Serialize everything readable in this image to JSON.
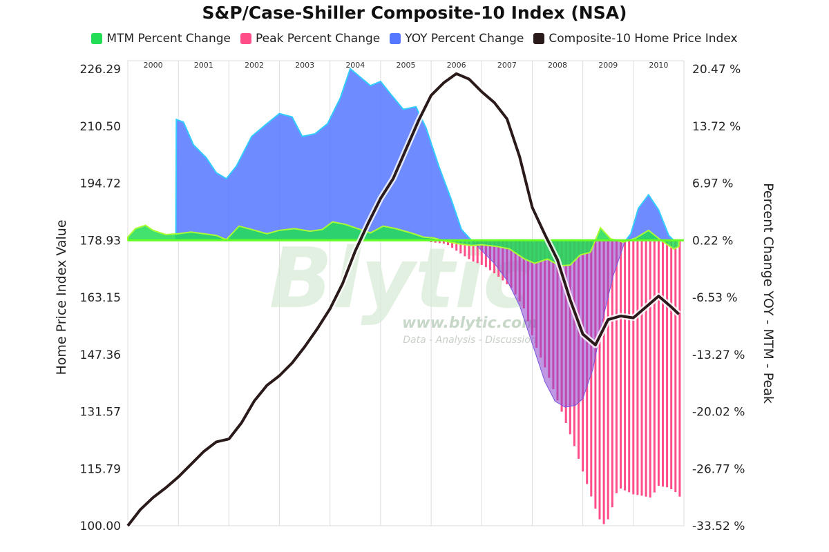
{
  "chart_data": {
    "type": "area",
    "title": "S&P/Case-Shiller Composite-10 Index (NSA)",
    "ylabel_left": "Home Price Index Value",
    "ylabel_right": "Percent Change YOY - MTM - Peak",
    "left_axis": {
      "min": 100.0,
      "max": 226.29,
      "ticks": [
        "100.00",
        "115.79",
        "131.57",
        "147.36",
        "163.15",
        "178.93",
        "194.72",
        "210.50",
        "226.29"
      ]
    },
    "right_axis": {
      "min": -33.52,
      "max": 20.47,
      "ticks": [
        "-33.52 %",
        "-26.77 %",
        "-20.02 %",
        "-13.27 %",
        "-6.53 %",
        "0.22 %",
        "6.97 %",
        "13.72 %",
        "20.47 %"
      ]
    },
    "x_domain": [
      2000.0,
      2011.0
    ],
    "years": [
      "2000",
      "2001",
      "2002",
      "2003",
      "2004",
      "2005",
      "2006",
      "2007",
      "2008",
      "2009",
      "2010"
    ],
    "grid": true,
    "legend_position": "top",
    "watermark": {
      "name": "Blytic",
      "url": "www.blytic.com",
      "tagline": "Data - Analysis - Discussion"
    },
    "series": [
      {
        "name": "MTM Percent Change",
        "axis": "right",
        "type": "area",
        "color": "#22dd55",
        "points": [
          [
            2000.0,
            0.6
          ],
          [
            2000.15,
            1.6
          ],
          [
            2000.35,
            2.0
          ],
          [
            2000.5,
            1.4
          ],
          [
            2000.75,
            0.9
          ],
          [
            2001.0,
            1.0
          ],
          [
            2001.25,
            1.2
          ],
          [
            2001.5,
            1.0
          ],
          [
            2001.75,
            0.8
          ],
          [
            2001.95,
            0.3
          ],
          [
            2002.2,
            1.9
          ],
          [
            2002.45,
            1.5
          ],
          [
            2002.75,
            1.0
          ],
          [
            2003.0,
            1.4
          ],
          [
            2003.3,
            1.6
          ],
          [
            2003.6,
            1.3
          ],
          [
            2003.85,
            1.5
          ],
          [
            2004.05,
            2.4
          ],
          [
            2004.3,
            2.1
          ],
          [
            2004.55,
            1.6
          ],
          [
            2004.8,
            1.1
          ],
          [
            2005.05,
            1.9
          ],
          [
            2005.3,
            1.6
          ],
          [
            2005.6,
            1.1
          ],
          [
            2005.85,
            0.6
          ],
          [
            2006.05,
            0.5
          ],
          [
            2006.3,
            0.1
          ],
          [
            2006.55,
            -0.2
          ],
          [
            2006.8,
            -0.4
          ],
          [
            2007.0,
            -0.3
          ],
          [
            2007.3,
            -0.5
          ],
          [
            2007.55,
            -0.8
          ],
          [
            2007.85,
            -2.0
          ],
          [
            2008.05,
            -2.5
          ],
          [
            2008.3,
            -2.0
          ],
          [
            2008.55,
            -2.8
          ],
          [
            2008.75,
            -2.7
          ],
          [
            2008.95,
            -1.5
          ],
          [
            2009.15,
            -1.2
          ],
          [
            2009.35,
            1.7
          ],
          [
            2009.55,
            0.4
          ],
          [
            2009.8,
            0.0
          ],
          [
            2010.05,
            0.5
          ],
          [
            2010.3,
            1.4
          ],
          [
            2010.55,
            0.2
          ],
          [
            2010.8,
            -0.8
          ],
          [
            2010.9,
            -0.5
          ]
        ]
      },
      {
        "name": "Peak Percent Change",
        "axis": "right",
        "type": "bar",
        "color": "#ff4d88",
        "points": [
          [
            2006.0,
            0.0
          ],
          [
            2006.3,
            -0.2
          ],
          [
            2006.55,
            -1.2
          ],
          [
            2006.8,
            -2.2
          ],
          [
            2007.05,
            -2.8
          ],
          [
            2007.3,
            -3.9
          ],
          [
            2007.6,
            -5.5
          ],
          [
            2007.85,
            -8.0
          ],
          [
            2008.05,
            -12.0
          ],
          [
            2008.3,
            -15.5
          ],
          [
            2008.55,
            -19.5
          ],
          [
            2008.8,
            -23.5
          ],
          [
            2009.05,
            -28.0
          ],
          [
            2009.25,
            -31.5
          ],
          [
            2009.35,
            -33.0
          ],
          [
            2009.45,
            -33.5
          ],
          [
            2009.55,
            -32.0
          ],
          [
            2009.7,
            -29.0
          ],
          [
            2009.9,
            -29.5
          ],
          [
            2010.0,
            -29.8
          ],
          [
            2010.2,
            -30.0
          ],
          [
            2010.35,
            -30.2
          ],
          [
            2010.5,
            -28.8
          ],
          [
            2010.7,
            -29.0
          ],
          [
            2010.85,
            -29.6
          ],
          [
            2010.95,
            -30.3
          ]
        ]
      },
      {
        "name": "YOY Percent Change",
        "axis": "right",
        "type": "area",
        "color": "#5577ff",
        "points": [
          [
            2000.95,
            0.2
          ],
          [
            2000.96,
            14.5
          ],
          [
            2001.1,
            14.2
          ],
          [
            2001.3,
            11.5
          ],
          [
            2001.55,
            10.0
          ],
          [
            2001.75,
            8.2
          ],
          [
            2001.95,
            7.5
          ],
          [
            2002.15,
            9.0
          ],
          [
            2002.45,
            12.5
          ],
          [
            2002.75,
            14.0
          ],
          [
            2003.0,
            15.2
          ],
          [
            2003.25,
            14.8
          ],
          [
            2003.45,
            12.5
          ],
          [
            2003.7,
            12.8
          ],
          [
            2003.95,
            14.0
          ],
          [
            2004.2,
            17.0
          ],
          [
            2004.4,
            20.5
          ],
          [
            2004.6,
            19.5
          ],
          [
            2004.8,
            18.5
          ],
          [
            2005.0,
            19.0
          ],
          [
            2005.2,
            17.5
          ],
          [
            2005.45,
            15.7
          ],
          [
            2005.7,
            16.0
          ],
          [
            2005.9,
            13.5
          ],
          [
            2006.15,
            9.0
          ],
          [
            2006.4,
            5.0
          ],
          [
            2006.6,
            1.5
          ],
          [
            2006.8,
            0.2
          ],
          [
            2009.85,
            0.2
          ],
          [
            2009.95,
            1.0
          ],
          [
            2010.1,
            4.0
          ],
          [
            2010.3,
            5.6
          ],
          [
            2010.5,
            3.8
          ],
          [
            2010.7,
            0.8
          ],
          [
            2010.8,
            0.2
          ]
        ]
      },
      {
        "name": "YOY Percent Change (negative)",
        "axis": "right",
        "type": "area",
        "color": "#8a44cc",
        "points": [
          [
            2006.8,
            0.2
          ],
          [
            2007.0,
            -1.0
          ],
          [
            2007.25,
            -2.5
          ],
          [
            2007.5,
            -4.5
          ],
          [
            2007.75,
            -7.5
          ],
          [
            2008.0,
            -12.0
          ],
          [
            2008.25,
            -16.5
          ],
          [
            2008.45,
            -18.8
          ],
          [
            2008.65,
            -19.5
          ],
          [
            2008.85,
            -19.3
          ],
          [
            2009.0,
            -18.5
          ],
          [
            2009.2,
            -15.0
          ],
          [
            2009.4,
            -9.0
          ],
          [
            2009.6,
            -4.0
          ],
          [
            2009.8,
            -0.5
          ],
          [
            2009.85,
            0.2
          ]
        ]
      },
      {
        "name": "Composite-10 Home Price Index",
        "axis": "left",
        "type": "line",
        "color": "#2a1a1a",
        "points": [
          [
            2000.0,
            100.0
          ],
          [
            2000.25,
            104.5
          ],
          [
            2000.5,
            107.8
          ],
          [
            2000.75,
            110.5
          ],
          [
            2001.0,
            113.5
          ],
          [
            2001.25,
            117.0
          ],
          [
            2001.5,
            120.5
          ],
          [
            2001.75,
            123.2
          ],
          [
            2002.0,
            124.0
          ],
          [
            2002.25,
            128.5
          ],
          [
            2002.5,
            134.5
          ],
          [
            2002.75,
            138.8
          ],
          [
            2003.0,
            141.5
          ],
          [
            2003.25,
            145.0
          ],
          [
            2003.5,
            149.5
          ],
          [
            2003.75,
            154.5
          ],
          [
            2004.0,
            160.0
          ],
          [
            2004.25,
            167.0
          ],
          [
            2004.5,
            176.0
          ],
          [
            2004.75,
            183.5
          ],
          [
            2005.0,
            190.5
          ],
          [
            2005.25,
            196.0
          ],
          [
            2005.5,
            204.0
          ],
          [
            2005.75,
            212.0
          ],
          [
            2006.0,
            219.0
          ],
          [
            2006.25,
            222.5
          ],
          [
            2006.5,
            225.0
          ],
          [
            2006.75,
            223.5
          ],
          [
            2007.0,
            220.0
          ],
          [
            2007.25,
            217.0
          ],
          [
            2007.5,
            212.5
          ],
          [
            2007.75,
            202.0
          ],
          [
            2008.0,
            188.0
          ],
          [
            2008.25,
            180.5
          ],
          [
            2008.5,
            173.5
          ],
          [
            2008.75,
            162.5
          ],
          [
            2009.0,
            153.0
          ],
          [
            2009.25,
            150.0
          ],
          [
            2009.5,
            157.0
          ],
          [
            2009.75,
            158.0
          ],
          [
            2010.0,
            157.5
          ],
          [
            2010.25,
            160.5
          ],
          [
            2010.5,
            163.5
          ],
          [
            2010.75,
            160.5
          ],
          [
            2010.9,
            158.5
          ]
        ]
      }
    ]
  }
}
